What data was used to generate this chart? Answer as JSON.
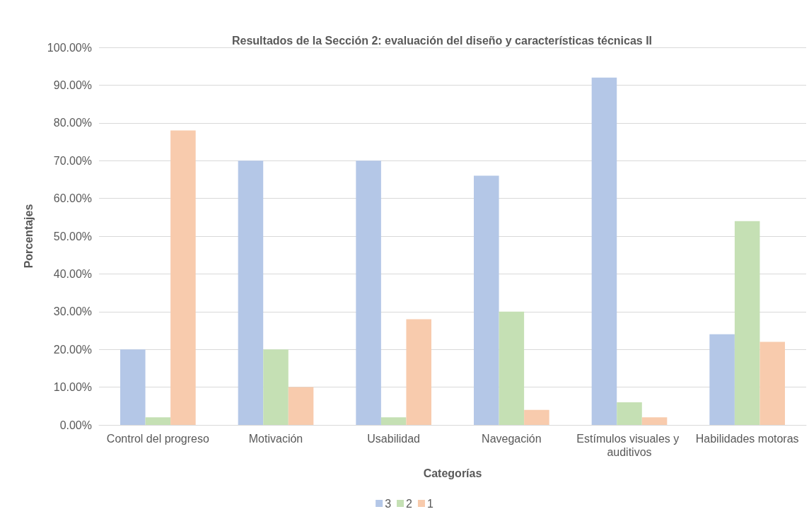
{
  "chart_data": {
    "type": "bar",
    "title": "Resultados de la Sección 2: evaluación del diseño y características técnicas II",
    "xlabel": "Categorías",
    "ylabel": "Porcentajes",
    "categories": [
      "Control del progreso",
      "Motivación",
      "Usabilidad",
      "Navegación",
      "Estímulos visuales y auditivos",
      "Habilidades motoras"
    ],
    "series": [
      {
        "name": "3",
        "color": "#b4c7e7",
        "values": [
          20,
          70,
          70,
          66,
          92,
          24
        ]
      },
      {
        "name": "2",
        "color": "#c5e0b4",
        "values": [
          2,
          20,
          2,
          30,
          6,
          54
        ]
      },
      {
        "name": "1",
        "color": "#f8cbad",
        "values": [
          78,
          10,
          28,
          4,
          2,
          22
        ]
      }
    ],
    "ylim": [
      0,
      100
    ],
    "yticks": [
      {
        "value": 0,
        "label": "0.00%"
      },
      {
        "value": 10,
        "label": "10.00%"
      },
      {
        "value": 20,
        "label": "20.00%"
      },
      {
        "value": 30,
        "label": "30.00%"
      },
      {
        "value": 40,
        "label": "40.00%"
      },
      {
        "value": 50,
        "label": "50.00%"
      },
      {
        "value": 60,
        "label": "60.00%"
      },
      {
        "value": 70,
        "label": "70.00%"
      },
      {
        "value": 80,
        "label": "80.00%"
      },
      {
        "value": 90,
        "label": "90.00%"
      },
      {
        "value": 100,
        "label": "100.00%"
      }
    ],
    "grid": "y",
    "legend": "bottom"
  }
}
